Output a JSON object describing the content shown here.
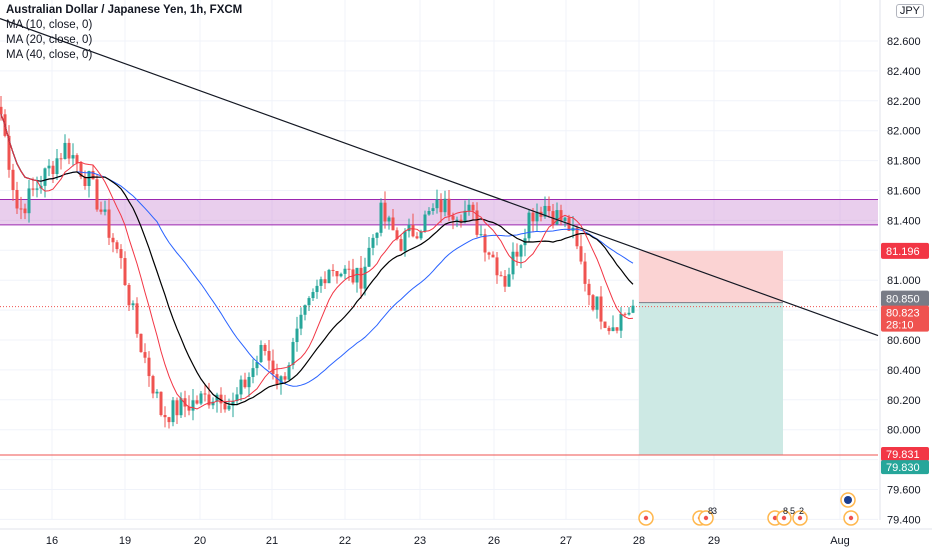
{
  "header": {
    "title": "Australian Dollar / Japanese Yen, 1h, FXCM",
    "indicators": [
      "MA (10, close, 0)",
      "MA (20, close, 0)",
      "MA (40, close, 0)"
    ],
    "currency": "JPY"
  },
  "price_labels": {
    "stop": "81.196",
    "current": "80.850",
    "last": "80.823",
    "countdown": "28:10",
    "target_line": "79.831",
    "target": "79.830"
  },
  "colors": {
    "up": "#26a69a",
    "down": "#ef5350",
    "ma10": "#f23645",
    "ma20": "#000000",
    "ma40": "#2962ff",
    "zone": "#ce93d8",
    "stop_zone": "#fbd3d3",
    "target_zone": "#cde9e4"
  },
  "events": [
    "8",
    "3",
    "8",
    "5",
    "2"
  ],
  "chart_data": {
    "type": "candlestick",
    "symbol": "AUDJPY",
    "timeframe": "1h",
    "y_axis": {
      "ticks": [
        "82.600",
        "82.400",
        "82.200",
        "82.000",
        "81.800",
        "81.600",
        "81.400",
        "81.200",
        "81.000",
        "80.800",
        "80.600",
        "80.400",
        "80.200",
        "80.000",
        "79.800",
        "79.600",
        "79.400"
      ],
      "range": [
        79.3,
        82.8
      ]
    },
    "x_axis": {
      "ticks": [
        "16",
        "19",
        "20",
        "21",
        "22",
        "23",
        "26",
        "27",
        "28",
        "29",
        "Aug"
      ]
    },
    "key_path": [
      {
        "x": "15",
        "close": 82.15
      },
      {
        "x": "15",
        "close": 81.45
      },
      {
        "x": "16",
        "close": 81.9
      },
      {
        "x": "16",
        "close": 81.65
      },
      {
        "x": "19",
        "close": 81.15
      },
      {
        "x": "19",
        "close": 80.65
      },
      {
        "x": "19",
        "close": 80.1
      },
      {
        "x": "20",
        "close": 80.25
      },
      {
        "x": "20",
        "close": 80.15
      },
      {
        "x": "21",
        "close": 80.55
      },
      {
        "x": "21",
        "close": 80.3
      },
      {
        "x": "21",
        "close": 80.75
      },
      {
        "x": "21",
        "close": 81.1
      },
      {
        "x": "22",
        "close": 81.0
      },
      {
        "x": "22",
        "close": 81.45
      },
      {
        "x": "22",
        "close": 81.25
      },
      {
        "x": "23",
        "close": 81.5
      },
      {
        "x": "23",
        "close": 81.45
      },
      {
        "x": "26",
        "close": 81.0
      },
      {
        "x": "26",
        "close": 81.45
      },
      {
        "x": "26",
        "close": 81.5
      },
      {
        "x": "27",
        "close": 81.35
      },
      {
        "x": "27",
        "close": 80.9
      },
      {
        "x": "27",
        "close": 80.7
      },
      {
        "x": "28",
        "close": 80.823
      }
    ],
    "resistance_zone": {
      "low": 81.37,
      "high": 81.54
    },
    "trendline": [
      {
        "x": "15",
        "price": 82.75
      },
      {
        "x": "Aug",
        "price": 80.63
      }
    ],
    "position": {
      "entry": 80.85,
      "stop": 81.196,
      "target": 79.83
    },
    "horizontal_line": 79.831,
    "last_price": 80.823
  }
}
